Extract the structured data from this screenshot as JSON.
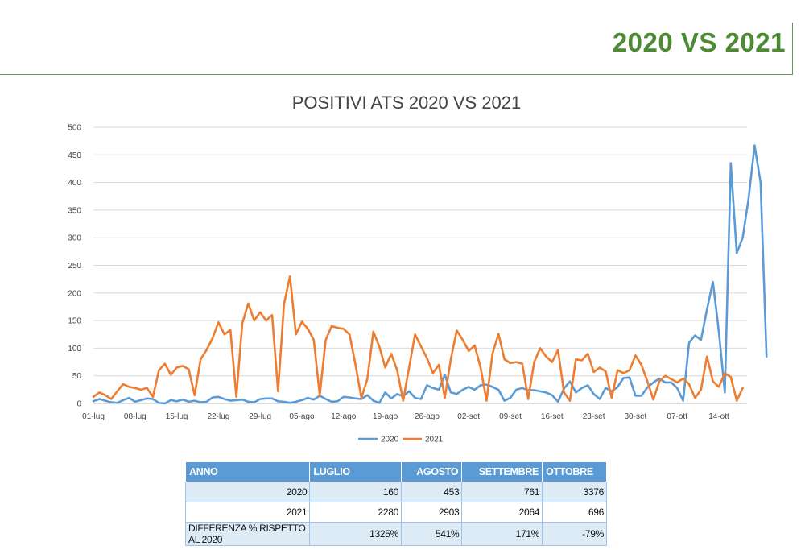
{
  "slide": {
    "title": "2020 VS 2021"
  },
  "chart_data": {
    "type": "line",
    "title": "POSITIVI ATS 2020 VS 2021",
    "ylim": [
      0,
      500
    ],
    "yticks": [
      0,
      50,
      100,
      150,
      200,
      250,
      300,
      350,
      400,
      450,
      500
    ],
    "x_start": "01-lug",
    "x_tick_labels": [
      "01-lug",
      "08-lug",
      "15-lug",
      "22-lug",
      "29-lug",
      "05-ago",
      "12-ago",
      "19-ago",
      "26-ago",
      "02-set",
      "09-set",
      "16-set",
      "23-set",
      "30-set",
      "07-ott",
      "14-ott"
    ],
    "x_tick_step_days": 7,
    "grid": true,
    "legend_position": "bottom",
    "series": [
      {
        "name": "2020",
        "color": "#5b9bd5",
        "values": [
          4,
          8,
          5,
          2,
          1,
          6,
          10,
          3,
          6,
          9,
          8,
          1,
          0,
          6,
          4,
          7,
          3,
          5,
          2,
          3,
          11,
          12,
          8,
          5,
          6,
          7,
          3,
          2,
          8,
          9,
          9,
          4,
          3,
          1,
          3,
          6,
          10,
          7,
          14,
          8,
          3,
          4,
          12,
          11,
          9,
          8,
          15,
          5,
          1,
          20,
          9,
          17,
          13,
          22,
          10,
          8,
          33,
          28,
          25,
          52,
          20,
          17,
          25,
          30,
          25,
          33,
          34,
          30,
          25,
          5,
          10,
          25,
          28,
          24,
          24,
          22,
          20,
          15,
          3,
          27,
          40,
          20,
          28,
          33,
          17,
          8,
          28,
          22,
          30,
          46,
          47,
          14,
          14,
          29,
          38,
          45,
          38,
          38,
          28,
          5,
          110,
          123,
          115,
          170,
          220,
          130,
          20,
          435,
          272,
          300,
          372,
          467,
          400,
          85
        ]
      },
      {
        "name": "2021",
        "color": "#ed7d31",
        "values": [
          12,
          20,
          15,
          8,
          22,
          35,
          30,
          28,
          25,
          28,
          12,
          60,
          72,
          52,
          65,
          68,
          62,
          15,
          80,
          97,
          118,
          147,
          125,
          133,
          12,
          145,
          181,
          150,
          165,
          150,
          160,
          22,
          180,
          230,
          125,
          148,
          135,
          115,
          15,
          115,
          140,
          137,
          135,
          125,
          70,
          10,
          45,
          130,
          103,
          65,
          90,
          60,
          5,
          65,
          125,
          103,
          82,
          55,
          70,
          10,
          80,
          132,
          115,
          95,
          105,
          65,
          5,
          90,
          126,
          80,
          73,
          75,
          72,
          8,
          75,
          100,
          85,
          75,
          97,
          20,
          5,
          80,
          78,
          90,
          57,
          65,
          58,
          10,
          60,
          55,
          60,
          87,
          70,
          40,
          7,
          40,
          50,
          44,
          38,
          45,
          35,
          10,
          25,
          85,
          40,
          30,
          55,
          48,
          5,
          28
        ]
      }
    ]
  },
  "table": {
    "headers": [
      "ANNO",
      "LUGLIO",
      "AGOSTO",
      "SETTEMBRE",
      "OTTOBRE"
    ],
    "rows": [
      [
        "2020",
        "160",
        "453",
        "761",
        "3376"
      ],
      [
        "2021",
        "2280",
        "2903",
        "2064",
        "696"
      ],
      [
        "DIFFERENZA % RISPETTO AL 2020",
        "1325%",
        "541%",
        "171%",
        "-79%"
      ]
    ]
  }
}
